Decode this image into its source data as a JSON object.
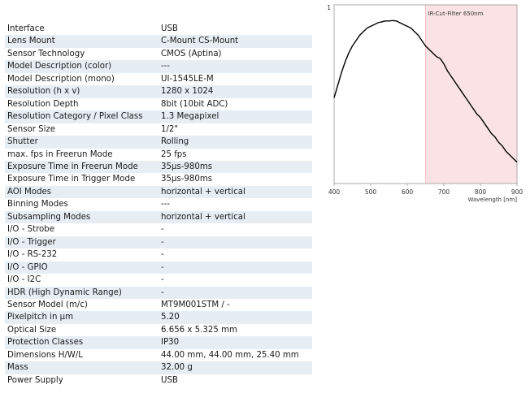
{
  "specs": [
    {
      "label": "Interface",
      "value": "USB"
    },
    {
      "label": "Lens Mount",
      "value": "C-Mount CS-Mount"
    },
    {
      "label": "Sensor Technology",
      "value": "CMOS (Aptina)"
    },
    {
      "label": "Model Description (color)",
      "value": "---"
    },
    {
      "label": "Model Description (mono)",
      "value": "UI-1545LE-M"
    },
    {
      "label": "Resolution (h x v)",
      "value": "1280 x 1024"
    },
    {
      "label": "Resolution Depth",
      "value": "8bit (10bit ADC)"
    },
    {
      "label": "Resolution Category / Pixel Class",
      "value": "1.3 Megapixel"
    },
    {
      "label": "Sensor Size",
      "value": "1/2\""
    },
    {
      "label": "Shutter",
      "value": "Rolling"
    },
    {
      "label": "max. fps in Freerun Mode",
      "value": "25 fps"
    },
    {
      "label": "Exposure Time in Freerun Mode",
      "value": "35µs-980ms"
    },
    {
      "label": "Exposure Time in Trigger Mode",
      "value": "35µs-980ms"
    },
    {
      "label": "AOI Modes",
      "value": "horizontal + vertical"
    },
    {
      "label": "Binning Modes",
      "value": "---"
    },
    {
      "label": "Subsampling Modes",
      "value": "horizontal + vertical"
    },
    {
      "label": "I/O - Strobe",
      "value": "-"
    },
    {
      "label": "I/O - Trigger",
      "value": "-"
    },
    {
      "label": "I/O - RS-232",
      "value": "-"
    },
    {
      "label": "I/O - GPIO",
      "value": "-"
    },
    {
      "label": "I/O - I2C",
      "value": "-"
    },
    {
      "label": "HDR (High Dynamic Range)",
      "value": "-"
    },
    {
      "label": "Sensor Model (m/c)",
      "value": "MT9M001STM / -"
    },
    {
      "label": "Pixelpitch in µm",
      "value": "5.20"
    },
    {
      "label": "Optical Size",
      "value": "6.656 x 5.325 mm"
    },
    {
      "label": "Protection Classes",
      "value": "IP30"
    },
    {
      "label": "Dimensions H/W/L",
      "value": "44.00 mm, 44.00 mm, 25.40 mm"
    },
    {
      "label": "Mass",
      "value": "32.00 g"
    },
    {
      "label": "Power Supply",
      "value": "USB"
    }
  ],
  "chart_data": {
    "type": "line",
    "title": "",
    "xlabel": "Wavelength [nm]",
    "ylabel": "",
    "xlim": [
      400,
      900
    ],
    "ylim": [
      0,
      1
    ],
    "x_ticks": [
      "400",
      "500",
      "600",
      "700",
      "800",
      "900"
    ],
    "y_ticks": [
      "1"
    ],
    "grid": false,
    "annotation": {
      "text": "IR-Cut-Filter 650nm",
      "x_from": 650,
      "x_to": 900,
      "color": "#fbe3e5"
    },
    "series": [
      {
        "color": "#000000",
        "x": [
          400,
          410,
          420,
          430,
          440,
          450,
          460,
          470,
          480,
          490,
          500,
          510,
          520,
          530,
          540,
          550,
          560,
          570,
          580,
          590,
          600,
          610,
          620,
          630,
          640,
          650,
          660,
          670,
          680,
          690,
          700,
          710,
          720,
          730,
          740,
          750,
          760,
          770,
          780,
          790,
          800,
          810,
          820,
          830,
          840,
          850,
          860,
          870,
          880,
          890,
          900
        ],
        "values": [
          0.48,
          0.55,
          0.62,
          0.68,
          0.73,
          0.77,
          0.8,
          0.83,
          0.85,
          0.87,
          0.88,
          0.89,
          0.9,
          0.905,
          0.91,
          0.91,
          0.912,
          0.91,
          0.9,
          0.89,
          0.88,
          0.87,
          0.85,
          0.83,
          0.8,
          0.77,
          0.75,
          0.73,
          0.71,
          0.7,
          0.67,
          0.63,
          0.6,
          0.57,
          0.54,
          0.51,
          0.48,
          0.45,
          0.42,
          0.39,
          0.37,
          0.34,
          0.31,
          0.28,
          0.26,
          0.23,
          0.21,
          0.18,
          0.16,
          0.14,
          0.12
        ]
      }
    ]
  }
}
